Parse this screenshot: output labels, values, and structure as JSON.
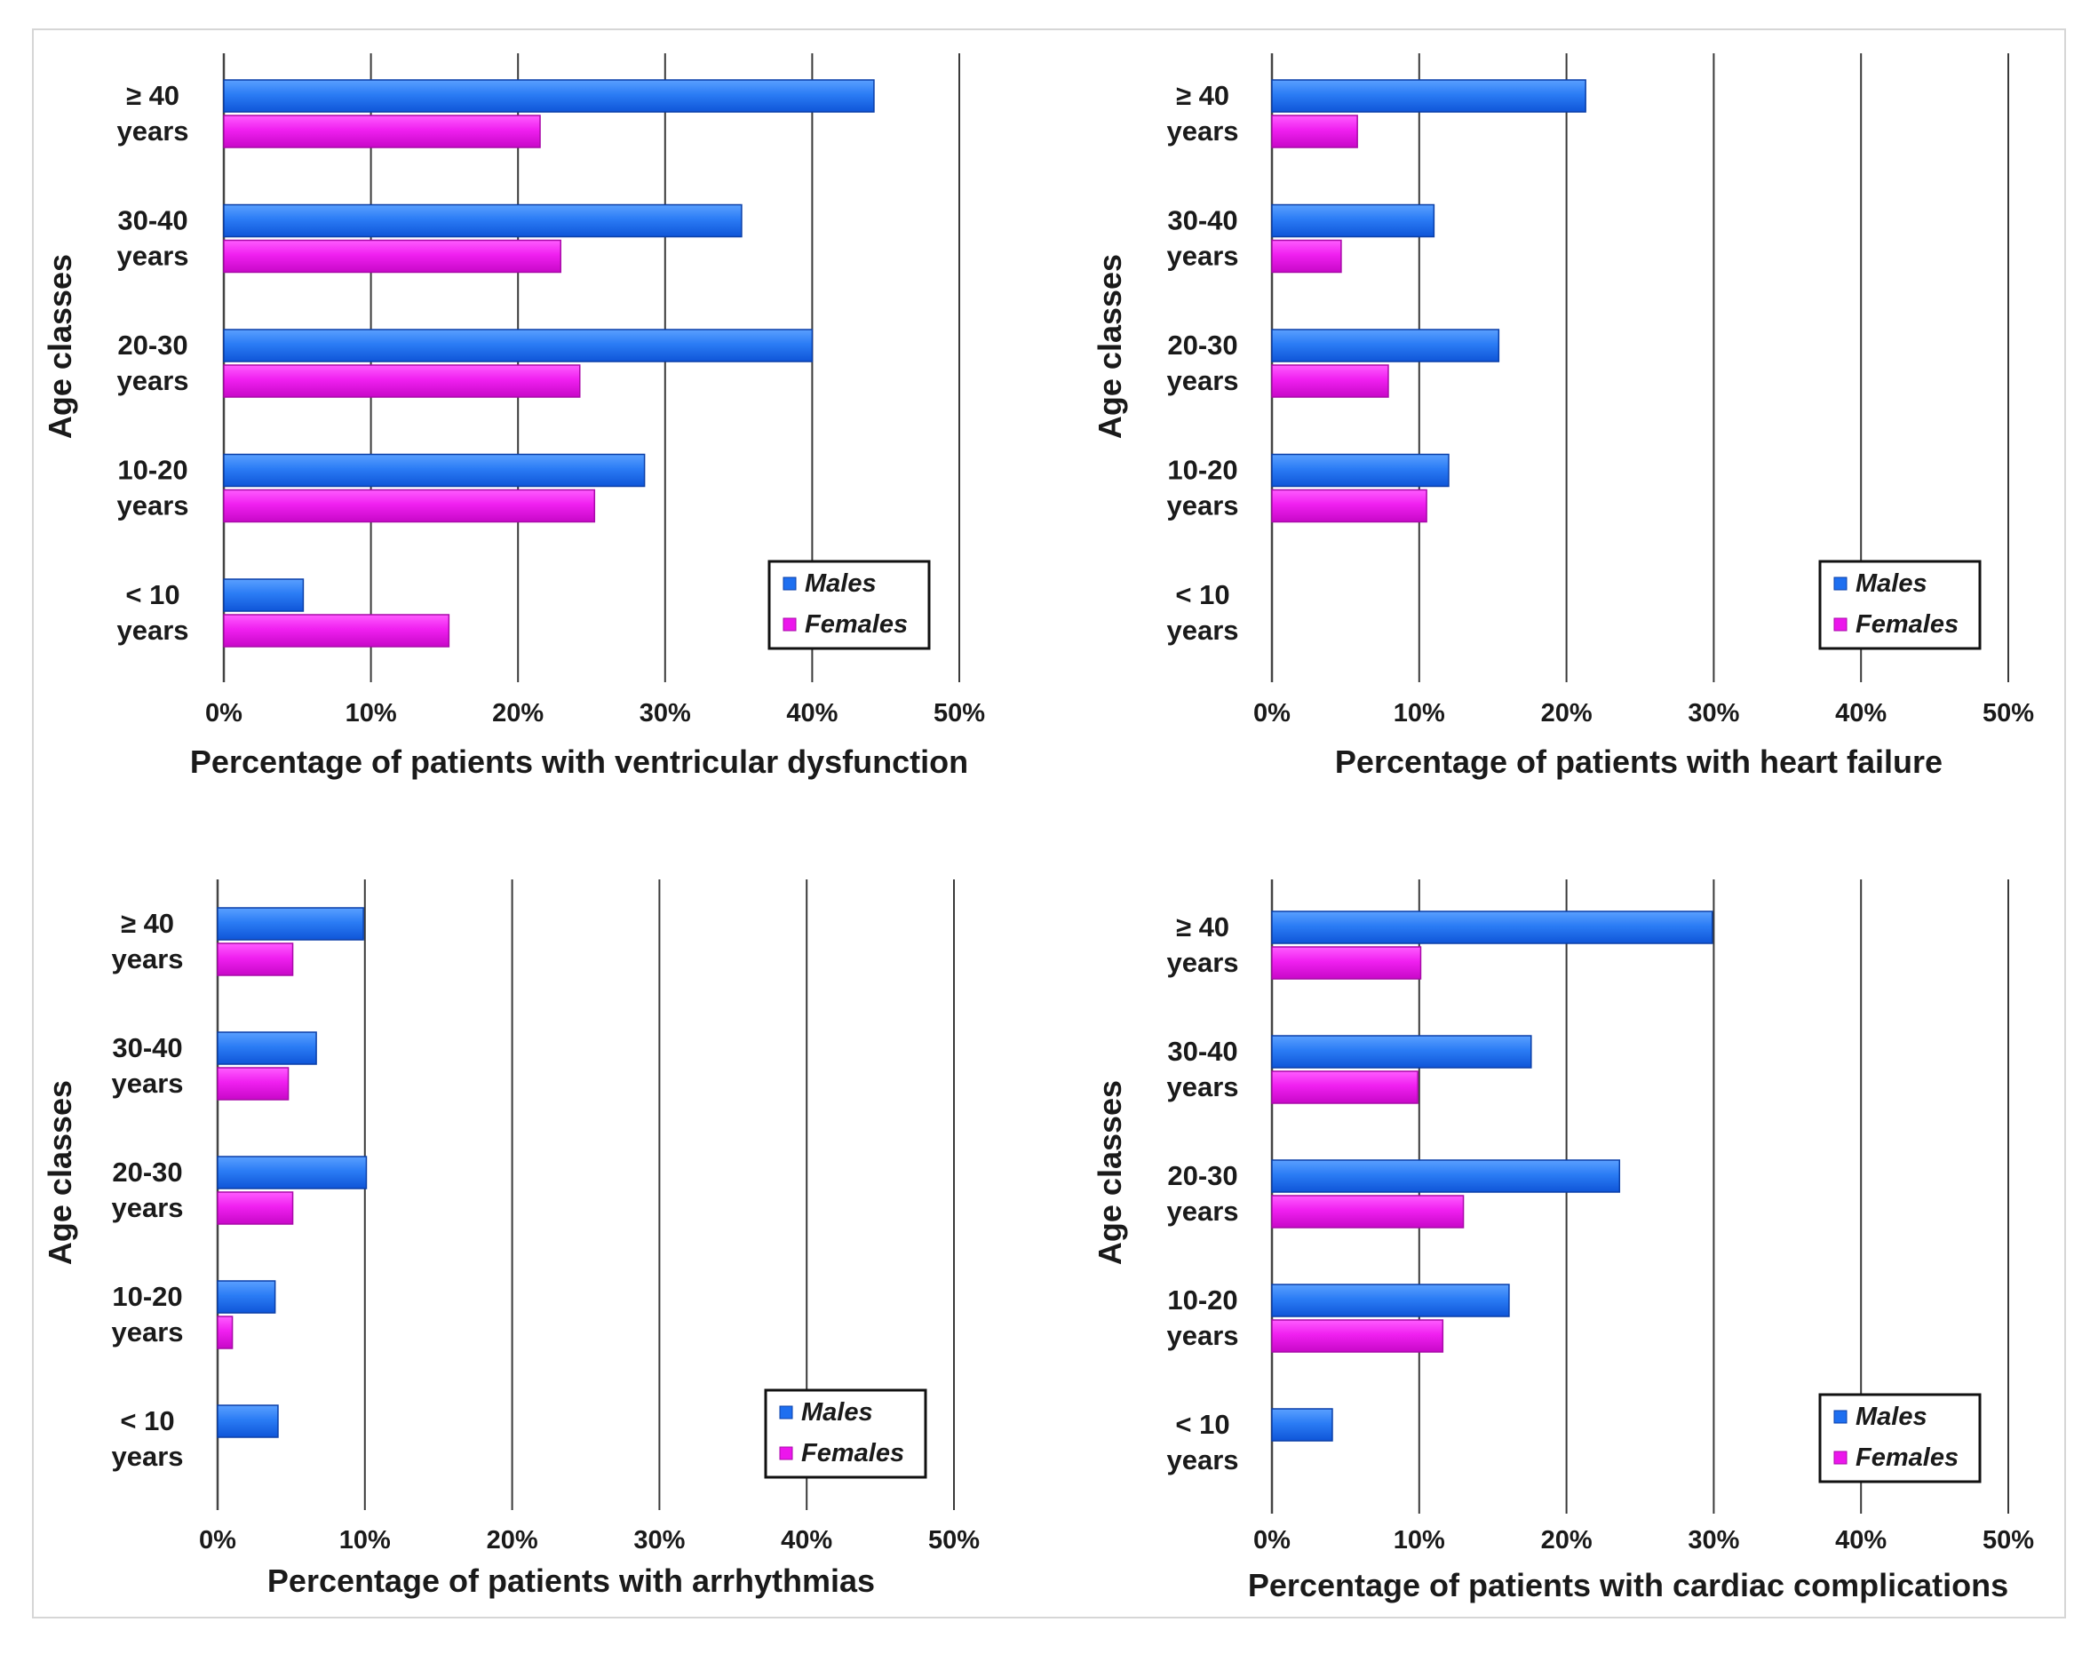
{
  "figure": {
    "y_axis_label": "Age classes",
    "categories": [
      "≥ 40",
      "30-40",
      "20-30",
      "10-20",
      "< 10"
    ],
    "category_sub": "years",
    "x_ticks": [
      "0%",
      "10%",
      "20%",
      "30%",
      "40%",
      "50%"
    ],
    "legend": {
      "males": "Males",
      "females": "Females"
    },
    "colors": {
      "males": "#1e6ff0",
      "females": "#ec16ec",
      "males_edge": "#0a3fa8",
      "females_edge": "#a80aa8"
    }
  },
  "chart_data": [
    {
      "type": "bar",
      "orientation": "horizontal",
      "title": "",
      "xlabel": "Percentage of patients with ventricular dysfunction",
      "ylabel": "Age classes",
      "categories": [
        "≥ 40 years",
        "30-40 years",
        "20-30 years",
        "10-20 years",
        "< 10 years"
      ],
      "xlim": [
        0,
        50
      ],
      "grid": true,
      "legend_position": "bottom-right",
      "series": [
        {
          "name": "Males",
          "values": [
            44.2,
            35.2,
            40.0,
            28.6,
            5.4
          ]
        },
        {
          "name": "Females",
          "values": [
            21.5,
            22.9,
            24.2,
            25.2,
            15.3
          ]
        }
      ]
    },
    {
      "type": "bar",
      "orientation": "horizontal",
      "title": "",
      "xlabel": "Percentage of patients with heart failure",
      "ylabel": "Age classes",
      "categories": [
        "≥ 40 years",
        "30-40 years",
        "20-30 years",
        "10-20 years",
        "< 10 years"
      ],
      "xlim": [
        0,
        50
      ],
      "grid": true,
      "legend_position": "bottom-right",
      "series": [
        {
          "name": "Males",
          "values": [
            21.3,
            11.0,
            15.4,
            12.0,
            0
          ]
        },
        {
          "name": "Females",
          "values": [
            5.8,
            4.7,
            7.9,
            10.5,
            0
          ]
        }
      ]
    },
    {
      "type": "bar",
      "orientation": "horizontal",
      "title": "",
      "xlabel": "Percentage of patients with arrhythmias",
      "ylabel": "Age classes",
      "categories": [
        "≥ 40 years",
        "30-40 years",
        "20-30 years",
        "10-20 years",
        "< 10 years"
      ],
      "xlim": [
        0,
        50
      ],
      "grid": true,
      "legend_position": "bottom-right",
      "series": [
        {
          "name": "Males",
          "values": [
            9.9,
            6.7,
            10.1,
            3.9,
            4.1
          ]
        },
        {
          "name": "Females",
          "values": [
            5.1,
            4.8,
            5.1,
            1.0,
            0
          ]
        }
      ]
    },
    {
      "type": "bar",
      "orientation": "horizontal",
      "title": "",
      "xlabel": "Percentage of patients with cardiac complications",
      "ylabel": "Age classes",
      "categories": [
        "≥ 40 years",
        "30-40 years",
        "20-30 years",
        "10-20 years",
        "< 10 years"
      ],
      "xlim": [
        0,
        50
      ],
      "grid": true,
      "legend_position": "bottom-right",
      "series": [
        {
          "name": "Males",
          "values": [
            29.9,
            17.6,
            23.6,
            16.1,
            4.1
          ]
        },
        {
          "name": "Females",
          "values": [
            10.1,
            9.9,
            13.0,
            11.6,
            0
          ]
        }
      ]
    }
  ]
}
